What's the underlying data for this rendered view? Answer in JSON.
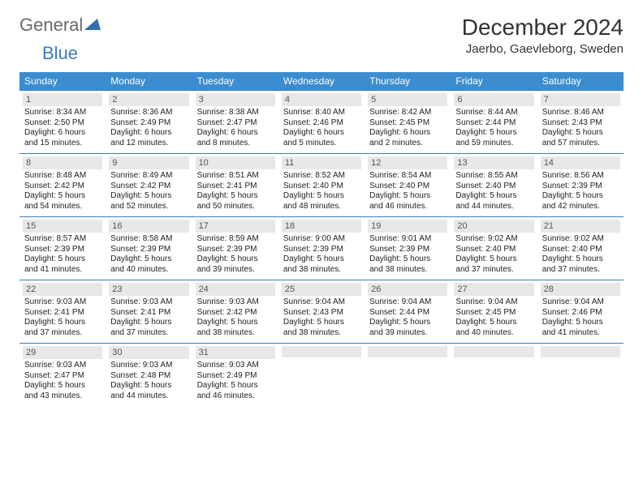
{
  "brand": {
    "word1": "General",
    "word2": "Blue"
  },
  "colors": {
    "header_blue": "#3b8dd0",
    "rule_blue": "#3b7bbf",
    "band_grey": "#e8e8e8",
    "brand_grey": "#6a6a6a"
  },
  "title": "December 2024",
  "location": "Jaerbo, Gaevleborg, Sweden",
  "dayHeaders": [
    "Sunday",
    "Monday",
    "Tuesday",
    "Wednesday",
    "Thursday",
    "Friday",
    "Saturday"
  ],
  "weeks": [
    [
      {
        "n": "1",
        "sr": "Sunrise: 8:34 AM",
        "ss": "Sunset: 2:50 PM",
        "dl": "Daylight: 6 hours and 15 minutes."
      },
      {
        "n": "2",
        "sr": "Sunrise: 8:36 AM",
        "ss": "Sunset: 2:49 PM",
        "dl": "Daylight: 6 hours and 12 minutes."
      },
      {
        "n": "3",
        "sr": "Sunrise: 8:38 AM",
        "ss": "Sunset: 2:47 PM",
        "dl": "Daylight: 6 hours and 8 minutes."
      },
      {
        "n": "4",
        "sr": "Sunrise: 8:40 AM",
        "ss": "Sunset: 2:46 PM",
        "dl": "Daylight: 6 hours and 5 minutes."
      },
      {
        "n": "5",
        "sr": "Sunrise: 8:42 AM",
        "ss": "Sunset: 2:45 PM",
        "dl": "Daylight: 6 hours and 2 minutes."
      },
      {
        "n": "6",
        "sr": "Sunrise: 8:44 AM",
        "ss": "Sunset: 2:44 PM",
        "dl": "Daylight: 5 hours and 59 minutes."
      },
      {
        "n": "7",
        "sr": "Sunrise: 8:46 AM",
        "ss": "Sunset: 2:43 PM",
        "dl": "Daylight: 5 hours and 57 minutes."
      }
    ],
    [
      {
        "n": "8",
        "sr": "Sunrise: 8:48 AM",
        "ss": "Sunset: 2:42 PM",
        "dl": "Daylight: 5 hours and 54 minutes."
      },
      {
        "n": "9",
        "sr": "Sunrise: 8:49 AM",
        "ss": "Sunset: 2:42 PM",
        "dl": "Daylight: 5 hours and 52 minutes."
      },
      {
        "n": "10",
        "sr": "Sunrise: 8:51 AM",
        "ss": "Sunset: 2:41 PM",
        "dl": "Daylight: 5 hours and 50 minutes."
      },
      {
        "n": "11",
        "sr": "Sunrise: 8:52 AM",
        "ss": "Sunset: 2:40 PM",
        "dl": "Daylight: 5 hours and 48 minutes."
      },
      {
        "n": "12",
        "sr": "Sunrise: 8:54 AM",
        "ss": "Sunset: 2:40 PM",
        "dl": "Daylight: 5 hours and 46 minutes."
      },
      {
        "n": "13",
        "sr": "Sunrise: 8:55 AM",
        "ss": "Sunset: 2:40 PM",
        "dl": "Daylight: 5 hours and 44 minutes."
      },
      {
        "n": "14",
        "sr": "Sunrise: 8:56 AM",
        "ss": "Sunset: 2:39 PM",
        "dl": "Daylight: 5 hours and 42 minutes."
      }
    ],
    [
      {
        "n": "15",
        "sr": "Sunrise: 8:57 AM",
        "ss": "Sunset: 2:39 PM",
        "dl": "Daylight: 5 hours and 41 minutes."
      },
      {
        "n": "16",
        "sr": "Sunrise: 8:58 AM",
        "ss": "Sunset: 2:39 PM",
        "dl": "Daylight: 5 hours and 40 minutes."
      },
      {
        "n": "17",
        "sr": "Sunrise: 8:59 AM",
        "ss": "Sunset: 2:39 PM",
        "dl": "Daylight: 5 hours and 39 minutes."
      },
      {
        "n": "18",
        "sr": "Sunrise: 9:00 AM",
        "ss": "Sunset: 2:39 PM",
        "dl": "Daylight: 5 hours and 38 minutes."
      },
      {
        "n": "19",
        "sr": "Sunrise: 9:01 AM",
        "ss": "Sunset: 2:39 PM",
        "dl": "Daylight: 5 hours and 38 minutes."
      },
      {
        "n": "20",
        "sr": "Sunrise: 9:02 AM",
        "ss": "Sunset: 2:40 PM",
        "dl": "Daylight: 5 hours and 37 minutes."
      },
      {
        "n": "21",
        "sr": "Sunrise: 9:02 AM",
        "ss": "Sunset: 2:40 PM",
        "dl": "Daylight: 5 hours and 37 minutes."
      }
    ],
    [
      {
        "n": "22",
        "sr": "Sunrise: 9:03 AM",
        "ss": "Sunset: 2:41 PM",
        "dl": "Daylight: 5 hours and 37 minutes."
      },
      {
        "n": "23",
        "sr": "Sunrise: 9:03 AM",
        "ss": "Sunset: 2:41 PM",
        "dl": "Daylight: 5 hours and 37 minutes."
      },
      {
        "n": "24",
        "sr": "Sunrise: 9:03 AM",
        "ss": "Sunset: 2:42 PM",
        "dl": "Daylight: 5 hours and 38 minutes."
      },
      {
        "n": "25",
        "sr": "Sunrise: 9:04 AM",
        "ss": "Sunset: 2:43 PM",
        "dl": "Daylight: 5 hours and 38 minutes."
      },
      {
        "n": "26",
        "sr": "Sunrise: 9:04 AM",
        "ss": "Sunset: 2:44 PM",
        "dl": "Daylight: 5 hours and 39 minutes."
      },
      {
        "n": "27",
        "sr": "Sunrise: 9:04 AM",
        "ss": "Sunset: 2:45 PM",
        "dl": "Daylight: 5 hours and 40 minutes."
      },
      {
        "n": "28",
        "sr": "Sunrise: 9:04 AM",
        "ss": "Sunset: 2:46 PM",
        "dl": "Daylight: 5 hours and 41 minutes."
      }
    ],
    [
      {
        "n": "29",
        "sr": "Sunrise: 9:03 AM",
        "ss": "Sunset: 2:47 PM",
        "dl": "Daylight: 5 hours and 43 minutes."
      },
      {
        "n": "30",
        "sr": "Sunrise: 9:03 AM",
        "ss": "Sunset: 2:48 PM",
        "dl": "Daylight: 5 hours and 44 minutes."
      },
      {
        "n": "31",
        "sr": "Sunrise: 9:03 AM",
        "ss": "Sunset: 2:49 PM",
        "dl": "Daylight: 5 hours and 46 minutes."
      },
      {
        "n": "",
        "sr": "",
        "ss": "",
        "dl": ""
      },
      {
        "n": "",
        "sr": "",
        "ss": "",
        "dl": ""
      },
      {
        "n": "",
        "sr": "",
        "ss": "",
        "dl": ""
      },
      {
        "n": "",
        "sr": "",
        "ss": "",
        "dl": ""
      }
    ]
  ]
}
